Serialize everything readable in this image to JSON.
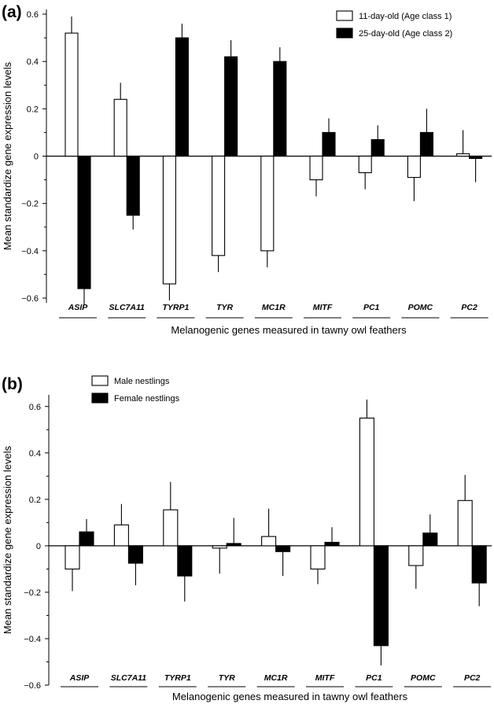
{
  "figure": {
    "panels": [
      "(a)",
      "(b)"
    ]
  },
  "chart_data": [
    {
      "type": "bar",
      "panel": "(a)",
      "categories": [
        "ASIP",
        "SLC7A11",
        "TYRP1",
        "TYR",
        "MC1R",
        "MITF",
        "PC1",
        "POMC",
        "PC2"
      ],
      "series": [
        {
          "name": "11-day-old (Age class 1)",
          "fill": "#ffffff",
          "values": [
            0.52,
            0.24,
            -0.54,
            -0.42,
            -0.4,
            -0.1,
            -0.07,
            -0.09,
            0.01
          ],
          "errors": [
            0.07,
            0.07,
            0.07,
            0.07,
            0.07,
            0.07,
            0.07,
            0.1,
            0.1
          ]
        },
        {
          "name": "25-day-old (Age class 2)",
          "fill": "#000000",
          "values": [
            -0.56,
            -0.25,
            0.5,
            0.42,
            0.4,
            0.1,
            0.07,
            0.1,
            -0.01
          ],
          "errors": [
            0.07,
            0.06,
            0.06,
            0.07,
            0.06,
            0.06,
            0.06,
            0.1,
            0.1
          ]
        }
      ],
      "ylabel": "Mean standardize gene expression levels",
      "xlabel": "Melanogenic genes measured in tawny owl feathers",
      "ylim": [
        -0.62,
        0.62
      ],
      "yticks": [
        -0.6,
        -0.4,
        -0.2,
        0,
        0.2,
        0.4,
        0.6
      ],
      "ytick_labels": [
        "−0.6",
        "−0.4",
        "−0.2",
        "0",
        "0.2",
        "0.4",
        "0.6"
      ],
      "legend_position": "top-right",
      "grid": false
    },
    {
      "type": "bar",
      "panel": "(b)",
      "categories": [
        "ASIP",
        "SLC7A11",
        "TYRP1",
        "TYR",
        "MC1R",
        "MITF",
        "PC1",
        "POMC",
        "PC2"
      ],
      "series": [
        {
          "name": "Male nestlings",
          "fill": "#ffffff",
          "values": [
            -0.1,
            0.09,
            0.155,
            -0.01,
            0.04,
            -0.1,
            0.55,
            -0.085,
            0.195
          ],
          "errors": [
            0.095,
            0.09,
            0.12,
            0.11,
            0.12,
            0.065,
            0.08,
            0.1,
            0.11
          ]
        },
        {
          "name": "Female nestlings",
          "fill": "#000000",
          "values": [
            0.06,
            -0.075,
            -0.13,
            0.01,
            -0.025,
            0.015,
            -0.43,
            0.055,
            -0.16
          ],
          "errors": [
            0.055,
            0.095,
            0.11,
            0.11,
            0.105,
            0.065,
            0.085,
            0.08,
            0.1
          ]
        }
      ],
      "ylabel": "Mean standardize gene expression levels",
      "xlabel": "Melanogenic genes measured in tawny owl feathers",
      "ylim": [
        -0.6,
        0.65
      ],
      "yticks": [
        -0.6,
        -0.4,
        -0.2,
        0,
        0.2,
        0.4,
        0.6
      ],
      "ytick_labels": [
        "−0.6",
        "−0.4",
        "−0.2",
        "0",
        "0.2",
        "0.4",
        "0.6"
      ],
      "legend_position": "top-left",
      "grid": false
    }
  ]
}
